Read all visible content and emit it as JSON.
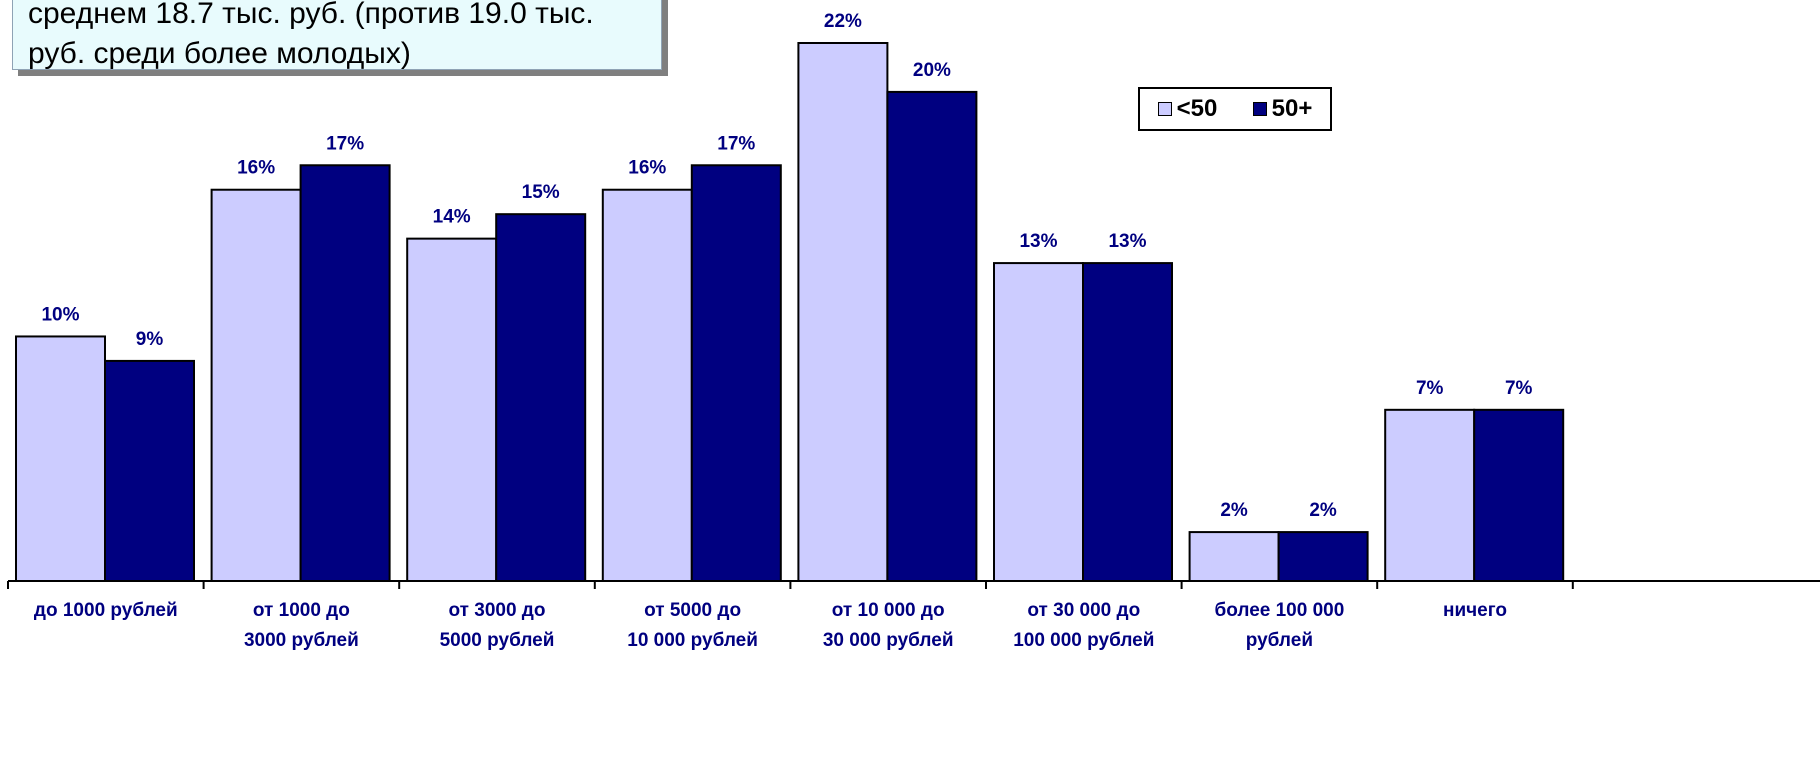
{
  "note": {
    "text": "среднем 18.7 тыс. руб. (против 19.0 тыс.\nруб. среди более молодых)"
  },
  "legend": [
    {
      "label": "<50",
      "color": "#ccccff"
    },
    {
      "label": "50+",
      "color": "#000080"
    }
  ],
  "chart_data": {
    "type": "bar",
    "categories": [
      "до 1000 рублей",
      "от 1000 до\n3000 рублей",
      "от 3000 до\n5000 рублей",
      "от 5000 до\n10 000 рублей",
      "от 10 000 до\n30 000 рублей",
      "от 30 000 до\n100 000 рублей",
      "более 100 000\nрублей",
      "ничего"
    ],
    "series": [
      {
        "name": "<50",
        "color": "#ccccff",
        "values": [
          10,
          16,
          14,
          16,
          22,
          13,
          2,
          7
        ]
      },
      {
        "name": "50+",
        "color": "#000080",
        "values": [
          9,
          17,
          15,
          17,
          20,
          13,
          2,
          7
        ]
      }
    ],
    "value_format": "%",
    "ylim": [
      0,
      22
    ],
    "grid": false,
    "legend_position": "top-right",
    "label_color": "#000080"
  }
}
